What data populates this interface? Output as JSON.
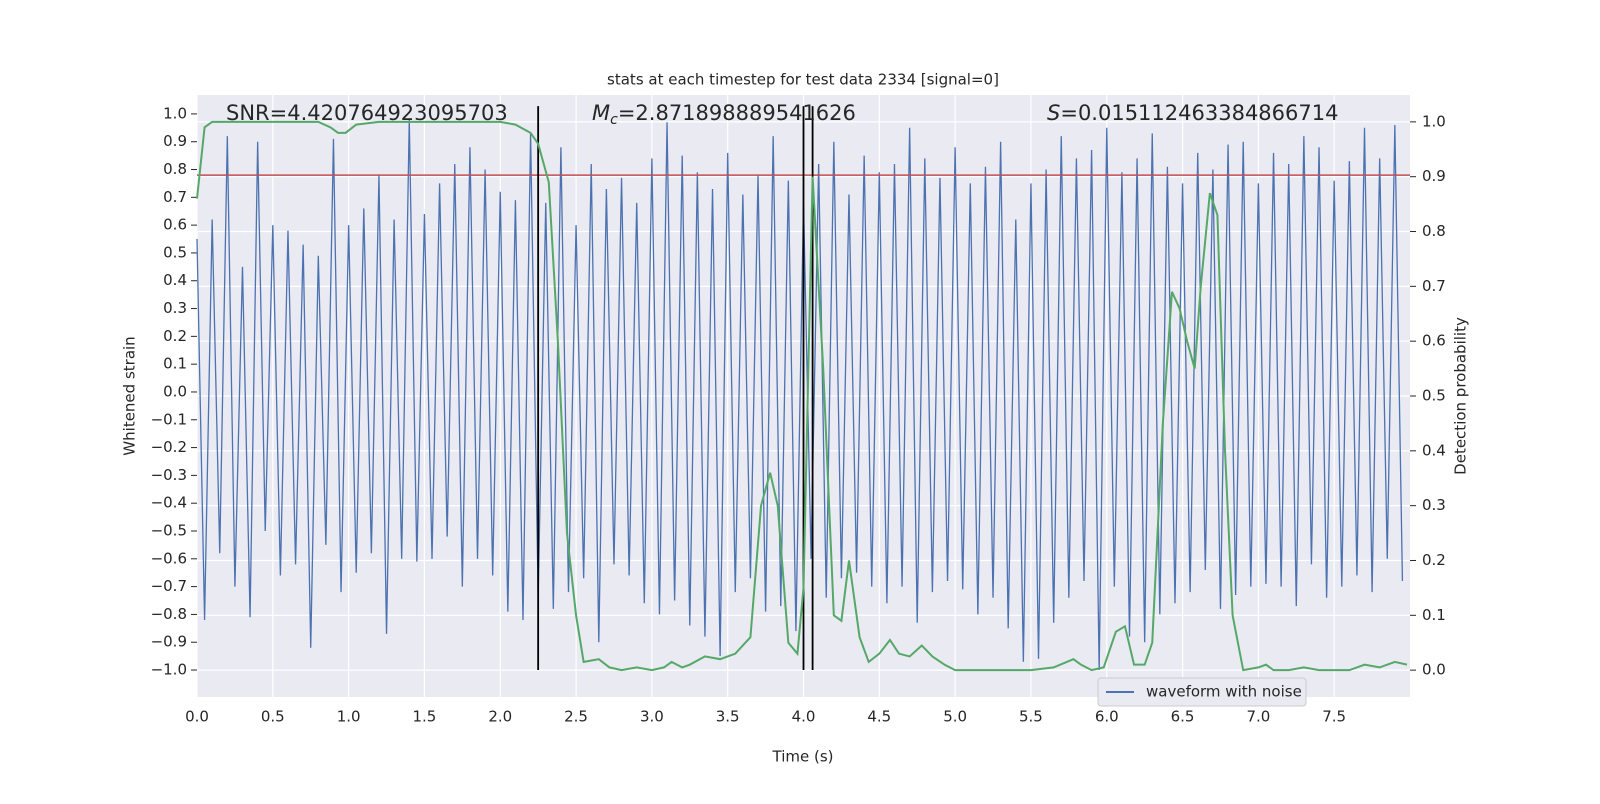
{
  "chart_data": {
    "type": "line",
    "title": "stats at each timestep for test data 2334 [signal=0]",
    "xlabel": "Time (s)",
    "ylabel": "Whitened strain",
    "y2label": "Detection probability",
    "annotations": [
      {
        "symbol": "SNR",
        "text": "=4.420764923095703"
      },
      {
        "symbol": "M",
        "subscript": "c",
        "text": "=2.871898889541626"
      },
      {
        "symbol": "S",
        "text": "=0.015112463384866714"
      }
    ],
    "xlim": [
      0,
      8
    ],
    "ylim": [
      -1.097,
      1.068
    ],
    "y2lim": [
      -0.049,
      1.049
    ],
    "xticks": [
      {
        "value": 0,
        "label": "0.0"
      },
      {
        "value": 0.5,
        "label": "0.5"
      },
      {
        "value": 1,
        "label": "1.0"
      },
      {
        "value": 1.5,
        "label": "1.5"
      },
      {
        "value": 2,
        "label": "2.0"
      },
      {
        "value": 2.5,
        "label": "2.5"
      },
      {
        "value": 3,
        "label": "3.0"
      },
      {
        "value": 3.5,
        "label": "3.5"
      },
      {
        "value": 4,
        "label": "4.0"
      },
      {
        "value": 4.5,
        "label": "4.5"
      },
      {
        "value": 5,
        "label": "5.0"
      },
      {
        "value": 5.5,
        "label": "5.5"
      },
      {
        "value": 6,
        "label": "6.0"
      },
      {
        "value": 6.5,
        "label": "6.5"
      },
      {
        "value": 7,
        "label": "7.0"
      },
      {
        "value": 7.5,
        "label": "7.5"
      }
    ],
    "yticks": [
      {
        "value": 1,
        "label": "1.0"
      },
      {
        "value": 0.9,
        "label": "0.9"
      },
      {
        "value": 0.8,
        "label": "0.8"
      },
      {
        "value": 0.7,
        "label": "0.7"
      },
      {
        "value": 0.6,
        "label": "0.6"
      },
      {
        "value": 0.5,
        "label": "0.5"
      },
      {
        "value": 0.4,
        "label": "0.4"
      },
      {
        "value": 0.3,
        "label": "0.3"
      },
      {
        "value": 0.2,
        "label": "0.2"
      },
      {
        "value": 0.1,
        "label": "0.1"
      },
      {
        "value": 0,
        "label": "0.0"
      },
      {
        "value": -0.1,
        "label": "−0.1"
      },
      {
        "value": -0.2,
        "label": "−0.2"
      },
      {
        "value": -0.3,
        "label": "−0.3"
      },
      {
        "value": -0.4,
        "label": "−0.4"
      },
      {
        "value": -0.5,
        "label": "−0.5"
      },
      {
        "value": -0.6,
        "label": "−0.6"
      },
      {
        "value": -0.7,
        "label": "−0.7"
      },
      {
        "value": -0.8,
        "label": "−0.8"
      },
      {
        "value": -0.9,
        "label": "−0.9"
      },
      {
        "value": -1,
        "label": "−1.0"
      }
    ],
    "y2ticks": [
      {
        "value": 1,
        "label": "1.0"
      },
      {
        "value": 0.9,
        "label": "0.9"
      },
      {
        "value": 0.8,
        "label": "0.8"
      },
      {
        "value": 0.7,
        "label": "0.7"
      },
      {
        "value": 0.6,
        "label": "0.6"
      },
      {
        "value": 0.5,
        "label": "0.5"
      },
      {
        "value": 0.4,
        "label": "0.4"
      },
      {
        "value": 0.3,
        "label": "0.3"
      },
      {
        "value": 0.2,
        "label": "0.2"
      },
      {
        "value": 0.1,
        "label": "0.1"
      },
      {
        "value": 0,
        "label": "0.0"
      }
    ],
    "grid": true,
    "legend": "lower right",
    "threshold": {
      "y": 0.78,
      "color": "#c44e52"
    },
    "vlines": {
      "x": [
        2.25,
        4.0,
        4.06
      ],
      "color": "#000000"
    },
    "series": [
      {
        "name": "waveform with noise",
        "color": "#4c72b0",
        "x": [
          0,
          0.05,
          0.1,
          0.15,
          0.2,
          0.25,
          0.3,
          0.35,
          0.4,
          0.45,
          0.5,
          0.55,
          0.6,
          0.65,
          0.7,
          0.75,
          0.8,
          0.85,
          0.9,
          0.95,
          1,
          1.05,
          1.1,
          1.15,
          1.2,
          1.25,
          1.3,
          1.35,
          1.4,
          1.45,
          1.5,
          1.55,
          1.6,
          1.65,
          1.7,
          1.75,
          1.8,
          1.85,
          1.9,
          1.95,
          2,
          2.05,
          2.1,
          2.15,
          2.2,
          2.25,
          2.3,
          2.35,
          2.4,
          2.45,
          2.5,
          2.55,
          2.6,
          2.65,
          2.7,
          2.75,
          2.8,
          2.85,
          2.9,
          2.95,
          3,
          3.05,
          3.1,
          3.15,
          3.2,
          3.25,
          3.3,
          3.35,
          3.4,
          3.45,
          3.5,
          3.55,
          3.6,
          3.65,
          3.7,
          3.75,
          3.8,
          3.85,
          3.9,
          3.95,
          4,
          4.05,
          4.1,
          4.15,
          4.2,
          4.25,
          4.3,
          4.35,
          4.4,
          4.45,
          4.5,
          4.55,
          4.6,
          4.65,
          4.7,
          4.75,
          4.8,
          4.85,
          4.9,
          4.95,
          5,
          5.05,
          5.1,
          5.15,
          5.2,
          5.25,
          5.3,
          5.35,
          5.4,
          5.45,
          5.5,
          5.55,
          5.6,
          5.65,
          5.7,
          5.75,
          5.8,
          5.85,
          5.9,
          5.95,
          6,
          6.05,
          6.1,
          6.15,
          6.2,
          6.25,
          6.3,
          6.35,
          6.4,
          6.45,
          6.5,
          6.55,
          6.6,
          6.65,
          6.7,
          6.75,
          6.8,
          6.85,
          6.9,
          6.95,
          7,
          7.05,
          7.1,
          7.15,
          7.2,
          7.25,
          7.3,
          7.35,
          7.4,
          7.45,
          7.5,
          7.55,
          7.6,
          7.65,
          7.7,
          7.75,
          7.8,
          7.85,
          7.9,
          7.95
        ],
        "values": [
          0.55,
          -0.82,
          0.62,
          -0.58,
          0.92,
          -0.7,
          0.45,
          -0.81,
          0.9,
          -0.5,
          0.6,
          -0.66,
          0.58,
          -0.62,
          0.53,
          -0.92,
          0.49,
          -0.55,
          0.91,
          -0.72,
          0.6,
          -0.65,
          0.66,
          -0.58,
          0.78,
          -0.87,
          0.62,
          -0.6,
          0.98,
          -0.61,
          0.64,
          -0.6,
          0.75,
          -0.52,
          0.82,
          -0.7,
          0.88,
          -0.6,
          0.8,
          -0.66,
          0.72,
          -0.79,
          0.69,
          -0.82,
          0.93,
          -0.74,
          0.68,
          -0.78,
          0.88,
          -0.72,
          0.6,
          -0.67,
          0.82,
          -0.9,
          0.73,
          -0.62,
          0.77,
          -0.66,
          0.68,
          -0.76,
          0.84,
          -0.8,
          0.97,
          -0.75,
          0.85,
          -0.84,
          0.79,
          -0.88,
          0.73,
          -0.95,
          0.86,
          -0.72,
          0.71,
          -0.67,
          0.78,
          -0.79,
          0.92,
          -0.77,
          0.76,
          -0.86,
          0.68,
          -0.6,
          0.82,
          -0.74,
          0.9,
          -0.67,
          0.71,
          -0.65,
          0.85,
          -0.7,
          0.79,
          -0.76,
          0.82,
          -0.7,
          0.95,
          -0.83,
          0.84,
          -0.72,
          0.77,
          -0.68,
          0.88,
          -0.71,
          0.75,
          -0.8,
          0.81,
          -0.74,
          0.9,
          -0.85,
          0.62,
          -0.97,
          0.75,
          -0.96,
          0.8,
          -0.83,
          0.92,
          -0.74,
          0.84,
          -0.68,
          0.87,
          -1.0,
          0.95,
          -0.7,
          0.79,
          -0.88,
          0.84,
          -0.9,
          0.93,
          -0.8,
          0.81,
          -0.76,
          0.75,
          -0.72,
          0.86,
          -0.64,
          0.8,
          -0.78,
          0.89,
          -0.73,
          0.9,
          -0.7,
          0.75,
          -0.69,
          0.86,
          -0.7,
          0.82,
          -0.77,
          0.92,
          -0.62,
          0.88,
          -0.74,
          0.76,
          -0.7,
          0.83,
          -0.66,
          0.95,
          -0.72,
          0.84,
          -0.6,
          0.96,
          -0.68
        ]
      },
      {
        "color": "#55a868",
        "axis": "y2",
        "x": [
          0,
          0.05,
          0.1,
          0.3,
          0.8,
          0.88,
          0.93,
          0.98,
          1.05,
          1.2,
          2,
          2.1,
          2.2,
          2.25,
          2.32,
          2.38,
          2.44,
          2.5,
          2.55,
          2.65,
          2.72,
          2.8,
          2.9,
          3,
          3.08,
          3.13,
          3.2,
          3.25,
          3.35,
          3.45,
          3.55,
          3.65,
          3.72,
          3.78,
          3.83,
          3.9,
          3.96,
          4,
          4.06,
          4.13,
          4.2,
          4.25,
          4.3,
          4.37,
          4.43,
          4.5,
          4.57,
          4.63,
          4.7,
          4.78,
          4.85,
          4.93,
          5,
          5.1,
          5.5,
          5.65,
          5.78,
          5.83,
          5.9,
          5.98,
          6.06,
          6.12,
          6.18,
          6.25,
          6.3,
          6.37,
          6.43,
          6.48,
          6.53,
          6.58,
          6.62,
          6.68,
          6.73,
          6.78,
          6.83,
          6.9,
          7,
          7.05,
          7.1,
          7.2,
          7.3,
          7.4,
          7.5,
          7.6,
          7.7,
          7.8,
          7.9,
          7.98
        ],
        "values": [
          0.86,
          0.99,
          1.0,
          1.0,
          1.0,
          0.99,
          0.98,
          0.98,
          0.995,
          1.0,
          1.0,
          0.995,
          0.98,
          0.96,
          0.89,
          0.6,
          0.25,
          0.1,
          0.015,
          0.02,
          0.005,
          0.0,
          0.005,
          0.0,
          0.005,
          0.015,
          0.005,
          0.01,
          0.025,
          0.02,
          0.03,
          0.06,
          0.3,
          0.36,
          0.3,
          0.05,
          0.03,
          0.15,
          0.9,
          0.55,
          0.1,
          0.09,
          0.2,
          0.06,
          0.015,
          0.03,
          0.055,
          0.03,
          0.025,
          0.045,
          0.025,
          0.01,
          0.0,
          0.0,
          0.0,
          0.005,
          0.02,
          0.01,
          0.0,
          0.005,
          0.07,
          0.08,
          0.01,
          0.01,
          0.05,
          0.45,
          0.69,
          0.66,
          0.6,
          0.55,
          0.7,
          0.87,
          0.83,
          0.4,
          0.1,
          0.0,
          0.005,
          0.01,
          0.0,
          0.0,
          0.005,
          0.0,
          0.0,
          0.0,
          0.01,
          0.005,
          0.015,
          0.01
        ]
      }
    ]
  }
}
